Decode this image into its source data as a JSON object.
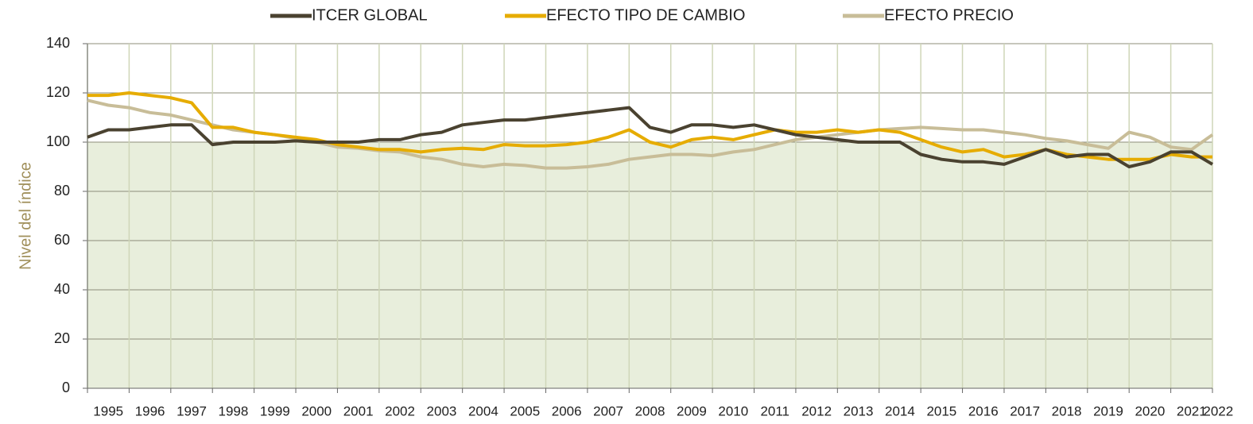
{
  "chart_data": {
    "type": "line",
    "y_label": "Nivel del índice",
    "x": [
      1995,
      1995.5,
      1996,
      1996.5,
      1997,
      1997.5,
      1998,
      1998.5,
      1999,
      1999.5,
      2000,
      2000.5,
      2001,
      2001.5,
      2002,
      2002.5,
      2003,
      2003.5,
      2004,
      2004.5,
      2005,
      2005.5,
      2006,
      2006.5,
      2007,
      2007.5,
      2008,
      2008.5,
      2009,
      2009.5,
      2010,
      2010.5,
      2011,
      2011.5,
      2012,
      2012.5,
      2013,
      2013.5,
      2014,
      2014.5,
      2015,
      2015.5,
      2016,
      2016.5,
      2017,
      2017.5,
      2018,
      2018.5,
      2019,
      2019.5,
      2020,
      2020.5,
      2021,
      2021.5,
      2022
    ],
    "series": [
      {
        "name": "ITCER GLOBAL",
        "color": "#4a4230",
        "values": [
          102,
          105,
          105,
          106,
          107,
          107,
          99,
          100,
          100,
          100,
          100.5,
          100,
          100,
          100,
          101,
          101,
          103,
          104,
          107,
          108,
          109,
          109,
          110,
          111,
          112,
          113,
          114,
          106,
          104,
          107,
          107,
          106,
          107,
          105,
          103,
          102,
          101,
          100,
          100,
          100,
          95,
          93,
          92,
          92,
          91,
          94,
          97,
          94,
          95,
          95,
          90,
          92,
          96,
          96,
          91
        ]
      },
      {
        "name": "EFECTO TIPO DE CAMBIO",
        "color": "#e6ac00",
        "values": [
          119,
          119,
          120,
          119,
          118,
          116,
          106,
          106,
          104,
          103,
          102,
          101,
          99,
          98,
          97,
          97,
          96,
          97,
          97.5,
          97,
          99,
          98.5,
          98.5,
          99,
          100,
          102,
          105,
          100,
          98,
          101,
          102,
          101,
          103,
          105,
          104,
          104,
          105,
          104,
          105,
          104,
          101,
          98,
          96,
          97,
          94,
          95,
          97,
          95,
          94,
          93,
          93,
          93,
          95,
          94,
          94
        ]
      },
      {
        "name": "EFECTO PRECIO",
        "color": "#c8bd98",
        "values": [
          117,
          115,
          114,
          112,
          111,
          109,
          107,
          105,
          104,
          103,
          101.5,
          100,
          98,
          97.5,
          96.5,
          96,
          94,
          93,
          91,
          90,
          91,
          90.5,
          89.5,
          89.5,
          90,
          91,
          93,
          94,
          95,
          95,
          94.5,
          96,
          97,
          99,
          101,
          102,
          103,
          104,
          105,
          105.5,
          106,
          105.5,
          105,
          105,
          104,
          103,
          101.5,
          100.5,
          99,
          97.5,
          104,
          102,
          98,
          97,
          103
        ]
      }
    ],
    "xlim": [
      1995,
      2022
    ],
    "xticks": [
      1995,
      1996,
      1997,
      1998,
      1999,
      2000,
      2001,
      2002,
      2003,
      2004,
      2005,
      2006,
      2007,
      2008,
      2009,
      2010,
      2011,
      2012,
      2013,
      2014,
      2015,
      2016,
      2017,
      2018,
      2019,
      2020,
      2021,
      2022
    ],
    "ylim": [
      0,
      140
    ],
    "yticks": [
      0,
      20,
      40,
      60,
      80,
      100,
      120,
      140
    ],
    "grid": true,
    "shaded_region": [
      0,
      100
    ],
    "shaded_color": "#e8eedc",
    "legend": "top"
  }
}
